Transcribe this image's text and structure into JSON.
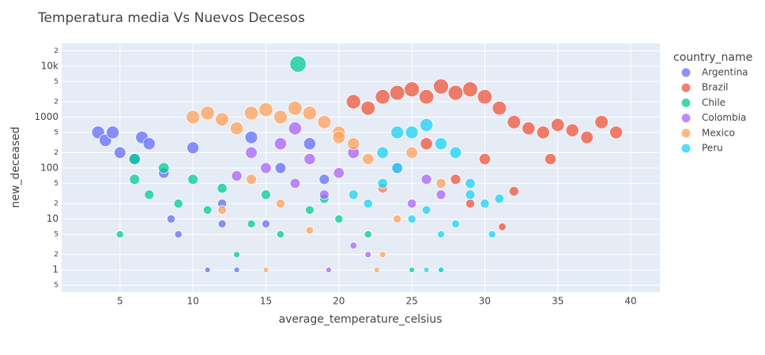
{
  "chart_data": {
    "type": "scatter",
    "title": "Temperatura media Vs Nuevos Decesos",
    "x_label": "average_temperature_celsius",
    "y_label": "new_deceased",
    "legend_title": "country_name",
    "legend": "right",
    "log_y": true,
    "grid": true,
    "xlim": [
      1,
      42
    ],
    "ylim": [
      0.37,
      28000
    ],
    "xticks": [
      5,
      10,
      15,
      20,
      25,
      30,
      35,
      40
    ],
    "yticks": [
      {
        "value": 0.5,
        "label": "5"
      },
      1,
      2,
      5,
      10,
      {
        "value": 20,
        "label": "2"
      },
      {
        "value": 50,
        "label": "5"
      },
      100,
      {
        "value": 200,
        "label": "2"
      },
      {
        "value": 500,
        "label": "5"
      },
      1000,
      {
        "value": 2000,
        "label": "2"
      },
      {
        "value": 5000,
        "label": "5"
      },
      {
        "value": 10000,
        "label": "10k"
      },
      {
        "value": 20000,
        "label": "2"
      }
    ],
    "series": [
      {
        "name": "Argentina",
        "color": "#636efa",
        "x": [
          3.5,
          4,
          4.5,
          5,
          6,
          6.5,
          7,
          8,
          8.5,
          9,
          10,
          11,
          12,
          13,
          14,
          15,
          16,
          18,
          19,
          12
        ],
        "values": [
          500,
          350,
          500,
          200,
          150,
          400,
          300,
          80,
          10,
          5,
          250,
          1,
          20,
          1,
          400,
          8,
          100,
          300,
          60,
          8
        ]
      },
      {
        "name": "Brazil",
        "color": "#EF553B",
        "x": [
          21,
          22,
          23,
          24,
          25,
          26,
          27,
          28,
          29,
          30,
          31,
          32,
          33,
          34,
          35,
          36,
          37,
          38,
          39,
          31.2,
          30,
          28,
          34.5,
          26,
          29,
          32
        ],
        "values": [
          2000,
          1500,
          2500,
          3000,
          3500,
          2500,
          4000,
          3000,
          3500,
          2500,
          1500,
          800,
          600,
          500,
          700,
          550,
          400,
          800,
          500,
          7,
          150,
          60,
          150,
          300,
          20,
          35
        ]
      },
      {
        "name": "Chile",
        "color": "#00cc96",
        "x": [
          5,
          6,
          7,
          8,
          9,
          10,
          11,
          12,
          13,
          14,
          15,
          16,
          17.2,
          18,
          19,
          20,
          22,
          25,
          27,
          6
        ],
        "values": [
          5,
          150,
          30,
          100,
          20,
          60,
          15,
          40,
          2,
          8,
          30,
          5,
          11000,
          15,
          25,
          10,
          5,
          1,
          1,
          60
        ]
      },
      {
        "name": "Colombia",
        "color": "#ab63fa",
        "x": [
          13,
          14,
          15,
          16,
          17,
          18,
          19,
          20,
          21,
          22,
          23,
          24,
          19.3,
          25,
          26,
          27,
          21,
          17
        ],
        "values": [
          70,
          200,
          100,
          300,
          50,
          150,
          30,
          80,
          3,
          2,
          40,
          100,
          1,
          20,
          60,
          30,
          200,
          600
        ]
      },
      {
        "name": "Mexico",
        "color": "#FFA15A",
        "x": [
          10,
          11,
          12,
          13,
          14,
          15,
          16,
          17,
          18,
          19,
          20,
          21,
          22,
          23,
          24,
          15,
          22.6,
          12,
          14,
          16,
          18,
          20,
          23,
          25,
          27
        ],
        "values": [
          1000,
          1200,
          900,
          600,
          1200,
          1400,
          1000,
          1500,
          1200,
          800,
          500,
          300,
          150,
          40,
          10,
          1,
          1,
          15,
          60,
          20,
          6,
          400,
          2,
          200,
          50
        ]
      },
      {
        "name": "Peru",
        "color": "#19d3f3",
        "x": [
          21,
          22,
          23,
          24,
          25,
          26,
          27,
          28,
          29,
          30,
          31,
          25,
          26,
          27,
          28,
          24,
          23,
          29,
          30.5,
          26,
          27
        ],
        "values": [
          30,
          20,
          50,
          100,
          500,
          700,
          300,
          200,
          30,
          20,
          25,
          10,
          15,
          5,
          8,
          500,
          200,
          50,
          5,
          1,
          1
        ]
      }
    ]
  }
}
